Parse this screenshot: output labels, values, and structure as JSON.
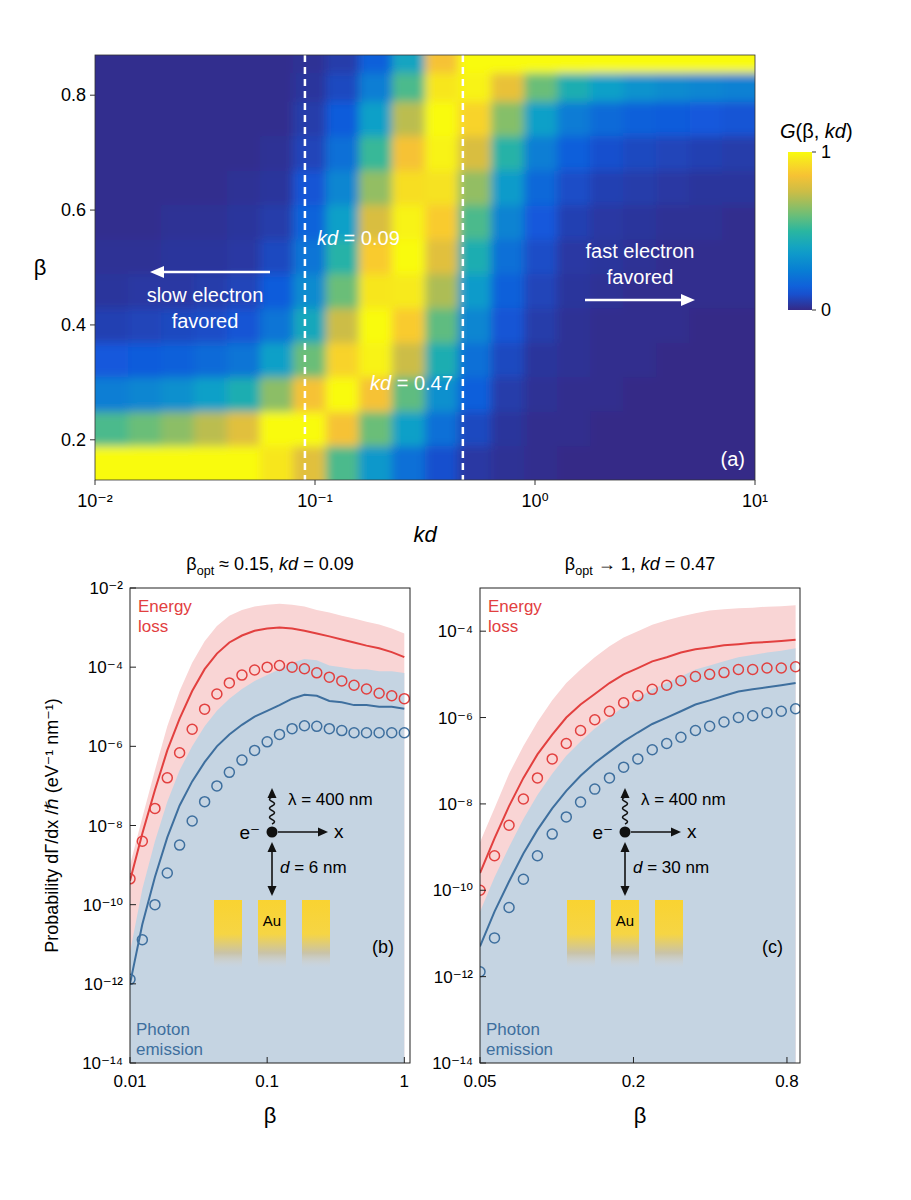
{
  "chart_data": [
    {
      "type": "heatmap",
      "panel": "(a)",
      "x_label": "kd",
      "y_label": "β",
      "log": "x",
      "xlim": [
        0.01,
        10
      ],
      "ylim": [
        0.13,
        0.87
      ],
      "xticks": [
        {
          "value": 0.01,
          "label": "10⁻²"
        },
        {
          "value": 0.1,
          "label": "10⁻¹"
        },
        {
          "value": 1,
          "label": "10⁰"
        },
        {
          "value": 10,
          "label": "10¹"
        }
      ],
      "yticks": [
        0.2,
        0.4,
        0.6,
        0.8
      ],
      "x": [
        0.0119,
        0.0168,
        0.0237,
        0.0335,
        0.0473,
        0.0668,
        0.0944,
        0.133,
        0.188,
        0.266,
        0.376,
        0.531,
        0.75,
        1.06,
        1.5,
        2.11,
        2.99,
        4.22,
        5.96,
        8.41
      ],
      "y": [
        0.16,
        0.22,
        0.28,
        0.34,
        0.4,
        0.46,
        0.52,
        0.58,
        0.64,
        0.7,
        0.76,
        0.82,
        0.86
      ],
      "values": [
        [
          1.0,
          1.0,
          1.0,
          1.0,
          1.0,
          0.95,
          0.8,
          0.55,
          0.35,
          0.2,
          0.1,
          0.04,
          0.02,
          0.01,
          0,
          0,
          0,
          0,
          0,
          0
        ],
        [
          0.55,
          0.6,
          0.65,
          0.72,
          0.8,
          1.0,
          1.0,
          0.85,
          0.6,
          0.38,
          0.2,
          0.08,
          0.03,
          0.01,
          0.01,
          0,
          0,
          0,
          0,
          0
        ],
        [
          0.25,
          0.28,
          0.32,
          0.38,
          0.45,
          0.65,
          0.85,
          1.0,
          0.85,
          0.58,
          0.32,
          0.14,
          0.05,
          0.02,
          0.01,
          0.01,
          0,
          0,
          0,
          0
        ],
        [
          0.12,
          0.13,
          0.15,
          0.18,
          0.22,
          0.38,
          0.6,
          0.9,
          0.98,
          0.75,
          0.45,
          0.2,
          0.08,
          0.03,
          0.02,
          0.01,
          0.01,
          0,
          0,
          0
        ],
        [
          0.06,
          0.07,
          0.08,
          0.09,
          0.11,
          0.22,
          0.42,
          0.75,
          1.0,
          0.88,
          0.58,
          0.28,
          0.11,
          0.05,
          0.02,
          0.01,
          0.01,
          0.01,
          0,
          0
        ],
        [
          0.03,
          0.04,
          0.04,
          0.05,
          0.07,
          0.13,
          0.3,
          0.6,
          0.95,
          0.96,
          0.7,
          0.36,
          0.15,
          0.07,
          0.03,
          0.02,
          0.01,
          0.01,
          0.01,
          0.01
        ],
        [
          0.02,
          0.02,
          0.03,
          0.03,
          0.04,
          0.08,
          0.22,
          0.48,
          0.88,
          1.0,
          0.8,
          0.45,
          0.2,
          0.09,
          0.04,
          0.03,
          0.02,
          0.01,
          0.01,
          0.01
        ],
        [
          0.01,
          0.01,
          0.02,
          0.02,
          0.03,
          0.05,
          0.16,
          0.38,
          0.78,
          0.98,
          0.88,
          0.55,
          0.27,
          0.12,
          0.06,
          0.04,
          0.03,
          0.02,
          0.02,
          0.01
        ],
        [
          0.01,
          0.01,
          0.01,
          0.01,
          0.02,
          0.03,
          0.11,
          0.28,
          0.66,
          0.93,
          0.94,
          0.66,
          0.36,
          0.17,
          0.09,
          0.06,
          0.05,
          0.04,
          0.03,
          0.03
        ],
        [
          0.01,
          0.01,
          0.01,
          0.01,
          0.01,
          0.02,
          0.07,
          0.2,
          0.52,
          0.85,
          0.98,
          0.78,
          0.48,
          0.25,
          0.14,
          0.1,
          0.08,
          0.07,
          0.06,
          0.05
        ],
        [
          0.01,
          0.01,
          0.01,
          0.01,
          0.01,
          0.01,
          0.05,
          0.13,
          0.38,
          0.72,
          1.0,
          0.9,
          0.64,
          0.38,
          0.24,
          0.18,
          0.15,
          0.13,
          0.12,
          0.11
        ],
        [
          0.01,
          0.01,
          0.01,
          0.01,
          0.01,
          0.01,
          0.03,
          0.08,
          0.25,
          0.55,
          0.95,
          0.98,
          0.82,
          0.6,
          0.45,
          0.38,
          0.33,
          0.3,
          0.28,
          0.26
        ],
        [
          0.01,
          0.01,
          0.01,
          0.01,
          0.01,
          0.01,
          0.02,
          0.05,
          0.15,
          0.4,
          0.85,
          1.0,
          1.0,
          1.0,
          1.0,
          1.0,
          1.0,
          1.0,
          1.0,
          1.0
        ]
      ],
      "colorbar": {
        "label": "G(β, kd)",
        "range": [
          0,
          1
        ],
        "ticks": [
          0,
          1
        ]
      },
      "vlines": [
        {
          "value": 0.09,
          "label": "kd = 0.09"
        },
        {
          "value": 0.47,
          "label": "kd = 0.47"
        }
      ],
      "arrows": [
        {
          "text": "slow electron favored",
          "direction": "left"
        },
        {
          "text": "fast electron favored",
          "direction": "right"
        }
      ]
    },
    {
      "type": "line",
      "panel": "(b)",
      "title": "βopt ≈ 0.15,   kd = 0.09",
      "log": true,
      "x_label": "β",
      "y_label": "Probability  dΓ/dx /ℏ  (eV⁻¹ nm⁻¹)",
      "xlim": [
        0.01,
        1.1
      ],
      "ylim": [
        1e-14,
        0.01
      ],
      "xticks": [
        0.01,
        0.1,
        1
      ],
      "yticks": [
        {
          "value": 1e-14,
          "label": "10⁻¹⁴"
        },
        {
          "value": 1e-12,
          "label": "10⁻¹²"
        },
        {
          "value": 1e-10,
          "label": "10⁻¹⁰"
        },
        {
          "value": 1e-08,
          "label": "10⁻⁸"
        },
        {
          "value": 1e-06,
          "label": "10⁻⁶"
        },
        {
          "value": 0.0001,
          "label": "10⁻⁴"
        },
        {
          "value": 0.01,
          "label": "10⁻²"
        }
      ],
      "x": [
        0.01,
        0.0123,
        0.0152,
        0.0187,
        0.023,
        0.0284,
        0.035,
        0.043,
        0.053,
        0.0655,
        0.081,
        0.1,
        0.123,
        0.152,
        0.187,
        0.23,
        0.284,
        0.35,
        0.43,
        0.53,
        0.655,
        0.81,
        1.0
      ],
      "series": [
        {
          "name": "Energy loss",
          "color": "#e2403f",
          "marker": "circle",
          "values": [
            4e-10,
            6.3e-09,
            7.9e-08,
            7.9e-07,
            5e-06,
            2.5e-05,
            8.9e-05,
            0.00022,
            0.00042,
            0.00063,
            0.00083,
            0.00095,
            0.001,
            0.00095,
            0.00083,
            0.00071,
            0.0006,
            0.0005,
            0.00042,
            0.00035,
            0.0003,
            0.00024,
            0.00018
          ],
          "circles": [
            4.5e-10,
            4e-09,
            2.7e-08,
            1.6e-07,
            6.9e-07,
            2.7e-06,
            8.7e-06,
            2.1e-05,
            4e-05,
            6.3e-05,
            8.5e-05,
            0.0001,
            0.00011,
            0.0001,
            9.1e-05,
            7.2e-05,
            5.6e-05,
            4.5e-05,
            3.5e-05,
            2.8e-05,
            2.2e-05,
            1.9e-05,
            1.6e-05
          ],
          "band_upper": [
            1e-09,
            1.6e-08,
            2.5e-07,
            3.2e-06,
            2.5e-05,
            0.00013,
            0.00045,
            0.0011,
            0.002,
            0.0028,
            0.0034,
            0.0038,
            0.004,
            0.0038,
            0.0034,
            0.0028,
            0.0024,
            0.002,
            0.0017,
            0.0014,
            0.0012,
            0.00095,
            0.00071
          ]
        },
        {
          "name": "Photon emission",
          "color": "#3e6f9e",
          "marker": "circle",
          "values": [
            1e-12,
            3.2e-11,
            5e-10,
            5e-09,
            3.2e-08,
            1.3e-07,
            4e-07,
            1e-06,
            2e-06,
            3.5e-06,
            5.6e-06,
            7.9e-06,
            1.1e-05,
            1.6e-05,
            2e-05,
            1.9e-05,
            1.4e-05,
            1.3e-05,
            1.1e-05,
            1.1e-05,
            1e-05,
            1e-05,
            8.9e-06
          ],
          "circles": [
            1.3e-12,
            1.3e-11,
            1e-10,
            6.3e-10,
            3.2e-09,
            1.3e-08,
            4e-08,
            1e-07,
            2.2e-07,
            4.5e-07,
            7.9e-07,
            1.3e-06,
            2e-06,
            2.8e-06,
            3.3e-06,
            3.2e-06,
            2.8e-06,
            2.5e-06,
            2.2e-06,
            2.2e-06,
            2.2e-06,
            2.2e-06,
            2.2e-06
          ],
          "band_upper": [
            6.3e-12,
            2.5e-10,
            4e-09,
            4e-08,
            2.5e-07,
            1e-06,
            3.2e-06,
            7.9e-06,
            1.6e-05,
            2.8e-05,
            4.5e-05,
            6.3e-05,
            8.9e-05,
            0.00013,
            0.00016,
            0.00015,
            0.00011,
            0.0001,
            8.9e-05,
            8.9e-05,
            7.9e-05,
            7.9e-05,
            7.1e-05
          ]
        }
      ],
      "inset": {
        "wavelength": "λ = 400 nm",
        "electron": "e⁻",
        "axis": "x",
        "distance": "d = 6 nm",
        "material": "Au"
      }
    },
    {
      "type": "line",
      "panel": "(c)",
      "title": "βopt → 1,   kd = 0.47",
      "log": true,
      "x_label": "β",
      "xlim": [
        0.05,
        0.9
      ],
      "ylim": [
        1e-14,
        0.001
      ],
      "xticks": [
        0.05,
        0.2,
        0.8
      ],
      "yticks": [
        {
          "value": 1e-14,
          "label": "10⁻¹⁴"
        },
        {
          "value": 1e-12,
          "label": "10⁻¹²"
        },
        {
          "value": 1e-10,
          "label": "10⁻¹⁰"
        },
        {
          "value": 1e-08,
          "label": "10⁻⁸"
        },
        {
          "value": 1e-06,
          "label": "10⁻⁶"
        },
        {
          "value": 0.0001,
          "label": "10⁻⁴"
        }
      ],
      "x": [
        0.05,
        0.057,
        0.065,
        0.074,
        0.084,
        0.096,
        0.109,
        0.124,
        0.141,
        0.161,
        0.183,
        0.208,
        0.237,
        0.27,
        0.307,
        0.35,
        0.398,
        0.453,
        0.516,
        0.587,
        0.668,
        0.76,
        0.865
      ],
      "series": [
        {
          "name": "Energy loss",
          "color": "#e2403f",
          "marker": "circle",
          "values": [
            2.5e-10,
            1.6e-09,
            8.9e-09,
            4e-08,
            1.4e-07,
            4e-07,
            1e-06,
            2e-06,
            3.5e-06,
            6.3e-06,
            1e-05,
            1.4e-05,
            2e-05,
            2.5e-05,
            3.2e-05,
            3.8e-05,
            4.2e-05,
            4.7e-05,
            5e-05,
            5.4e-05,
            5.6e-05,
            5.9e-05,
            6.3e-05
          ],
          "circles": [
            1e-10,
            6.3e-10,
            3.2e-09,
            1.3e-08,
            4e-08,
            1.1e-07,
            2.5e-07,
            5e-07,
            8.9e-07,
            1.4e-06,
            2.2e-06,
            3.2e-06,
            4.5e-06,
            5.6e-06,
            7.1e-06,
            8.9e-06,
            1e-05,
            1.1e-05,
            1.3e-05,
            1.3e-05,
            1.4e-05,
            1.4e-05,
            1.5e-05
          ],
          "band_upper": [
            1.3e-09,
            7.9e-09,
            5e-08,
            2.2e-07,
            7.9e-07,
            2.5e-06,
            6.3e-06,
            1.3e-05,
            2.5e-05,
            4.5e-05,
            7.1e-05,
            0.0001,
            0.00014,
            0.00018,
            0.00022,
            0.00026,
            0.0003,
            0.00032,
            0.00034,
            0.00035,
            0.00037,
            0.00038,
            0.0004
          ]
        },
        {
          "name": "Photon emission",
          "color": "#3e6f9e",
          "marker": "circle",
          "values": [
            5e-12,
            3.2e-11,
            1.6e-10,
            7.1e-10,
            2.5e-09,
            7.9e-09,
            2e-08,
            4.5e-08,
            8.9e-08,
            1.6e-07,
            2.8e-07,
            4.5e-07,
            7.1e-07,
            1e-06,
            1.4e-06,
            2e-06,
            2.5e-06,
            3.2e-06,
            4e-06,
            4.5e-06,
            5e-06,
            5.6e-06,
            6.3e-06
          ],
          "circles": [
            1.3e-12,
            7.9e-12,
            4e-11,
            1.8e-10,
            6.3e-10,
            2e-09,
            5e-09,
            1.1e-08,
            2.2e-08,
            4e-08,
            7.1e-08,
            1.1e-07,
            1.8e-07,
            2.5e-07,
            3.5e-07,
            5e-07,
            6.3e-07,
            7.9e-07,
            1e-06,
            1.1e-06,
            1.3e-06,
            1.4e-06,
            1.6e-06
          ],
          "band_upper": [
            3.2e-11,
            2e-10,
            1e-09,
            4.5e-09,
            1.6e-08,
            5e-08,
            1.3e-07,
            2.8e-07,
            5.6e-07,
            1e-06,
            1.8e-06,
            2.8e-06,
            4.5e-06,
            6.3e-06,
            8.9e-06,
            1.3e-05,
            1.6e-05,
            2e-05,
            2.5e-05,
            2.8e-05,
            3.2e-05,
            3.5e-05,
            4e-05
          ]
        }
      ],
      "inset": {
        "wavelength": "λ = 400 nm",
        "electron": "e⁻",
        "axis": "x",
        "distance": "d = 30 nm",
        "material": "Au"
      }
    }
  ]
}
